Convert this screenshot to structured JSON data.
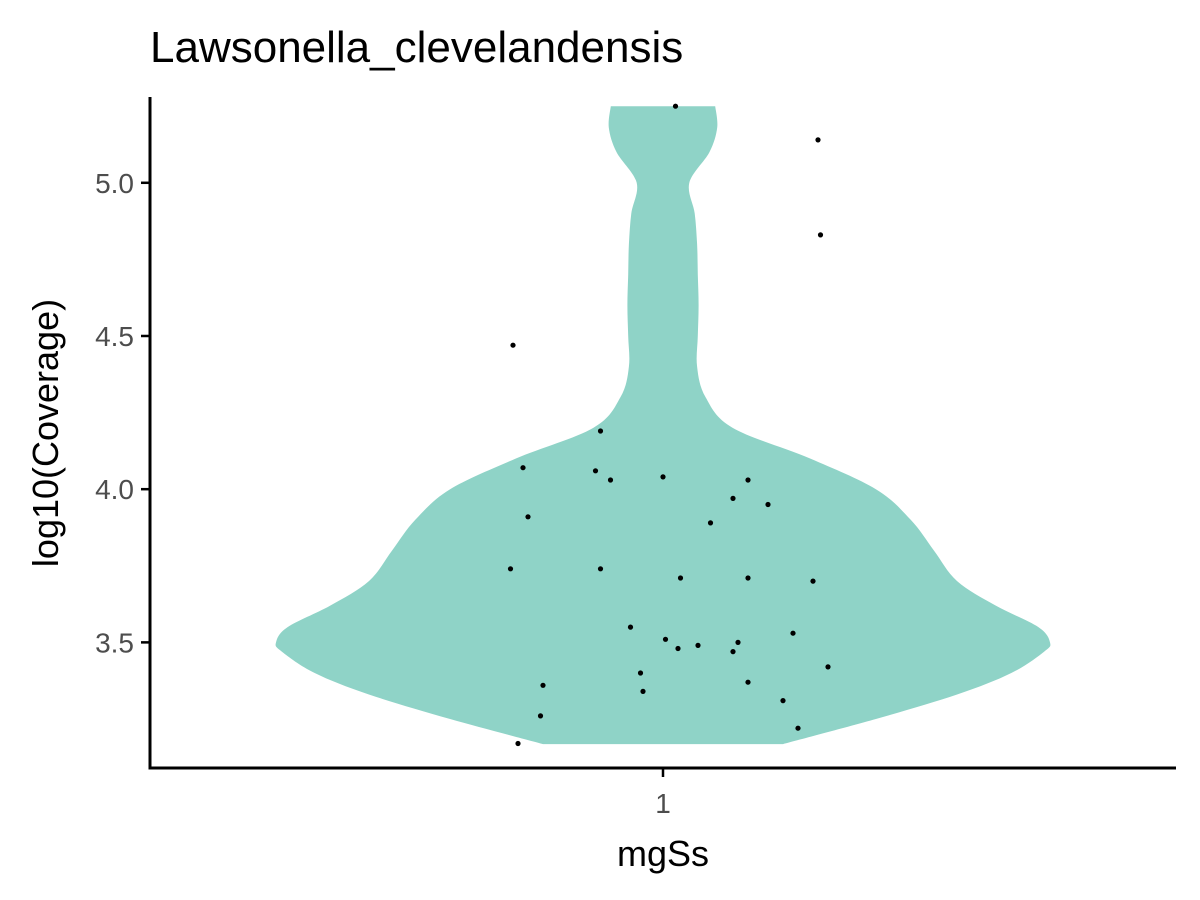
{
  "chart_data": {
    "type": "violin",
    "title": "Lawsonella_clevelandensis",
    "xlabel": "mgSs",
    "ylabel": "log10(Coverage)",
    "categories": [
      "1"
    ],
    "ylim": [
      3.09,
      5.28
    ],
    "y_ticks": [
      3.5,
      4.0,
      4.5,
      5.0
    ],
    "y_tick_labels": [
      "3.5",
      "4.0",
      "4.5",
      "5.0"
    ],
    "grid": false,
    "legend": "none",
    "fill_color": "#8fd3c7",
    "point_color": "#000000",
    "violin_range": [
      3.168,
      5.25
    ],
    "density_profile": [
      {
        "y": 3.168,
        "w": 0.31
      },
      {
        "y": 3.25,
        "w": 0.55
      },
      {
        "y": 3.33,
        "w": 0.76
      },
      {
        "y": 3.4,
        "w": 0.9
      },
      {
        "y": 3.47,
        "w": 0.985
      },
      {
        "y": 3.5,
        "w": 1.0
      },
      {
        "y": 3.55,
        "w": 0.97
      },
      {
        "y": 3.62,
        "w": 0.86
      },
      {
        "y": 3.7,
        "w": 0.76
      },
      {
        "y": 3.8,
        "w": 0.7
      },
      {
        "y": 3.9,
        "w": 0.64
      },
      {
        "y": 4.0,
        "w": 0.55
      },
      {
        "y": 4.1,
        "w": 0.38
      },
      {
        "y": 4.2,
        "w": 0.18
      },
      {
        "y": 4.3,
        "w": 0.11
      },
      {
        "y": 4.4,
        "w": 0.088
      },
      {
        "y": 4.5,
        "w": 0.09
      },
      {
        "y": 4.6,
        "w": 0.092
      },
      {
        "y": 4.7,
        "w": 0.09
      },
      {
        "y": 4.8,
        "w": 0.088
      },
      {
        "y": 4.9,
        "w": 0.082
      },
      {
        "y": 5.0,
        "w": 0.068
      },
      {
        "y": 5.1,
        "w": 0.12
      },
      {
        "y": 5.18,
        "w": 0.14
      },
      {
        "y": 5.25,
        "w": 0.135
      }
    ],
    "points": [
      {
        "x": 0.05,
        "y": 5.25
      },
      {
        "x": 0.62,
        "y": 5.14
      },
      {
        "x": 0.63,
        "y": 4.83
      },
      {
        "x": -0.6,
        "y": 4.47
      },
      {
        "x": -0.25,
        "y": 4.19
      },
      {
        "x": -0.56,
        "y": 4.07
      },
      {
        "x": -0.27,
        "y": 4.06
      },
      {
        "x": -0.21,
        "y": 4.03
      },
      {
        "x": 0.0,
        "y": 4.04
      },
      {
        "x": 0.34,
        "y": 4.03
      },
      {
        "x": 0.28,
        "y": 3.97
      },
      {
        "x": 0.42,
        "y": 3.95
      },
      {
        "x": -0.54,
        "y": 3.91
      },
      {
        "x": 0.19,
        "y": 3.89
      },
      {
        "x": -0.61,
        "y": 3.74
      },
      {
        "x": -0.25,
        "y": 3.74
      },
      {
        "x": 0.07,
        "y": 3.71
      },
      {
        "x": 0.34,
        "y": 3.71
      },
      {
        "x": 0.6,
        "y": 3.7
      },
      {
        "x": -0.13,
        "y": 3.55
      },
      {
        "x": 0.52,
        "y": 3.53
      },
      {
        "x": 0.01,
        "y": 3.51
      },
      {
        "x": 0.3,
        "y": 3.5
      },
      {
        "x": 0.14,
        "y": 3.49
      },
      {
        "x": 0.06,
        "y": 3.48
      },
      {
        "x": 0.28,
        "y": 3.47
      },
      {
        "x": 0.66,
        "y": 3.42
      },
      {
        "x": -0.09,
        "y": 3.4
      },
      {
        "x": 0.34,
        "y": 3.37
      },
      {
        "x": -0.48,
        "y": 3.36
      },
      {
        "x": -0.08,
        "y": 3.34
      },
      {
        "x": 0.48,
        "y": 3.31
      },
      {
        "x": -0.49,
        "y": 3.26
      },
      {
        "x": 0.54,
        "y": 3.22
      },
      {
        "x": -0.58,
        "y": 3.17
      }
    ]
  }
}
